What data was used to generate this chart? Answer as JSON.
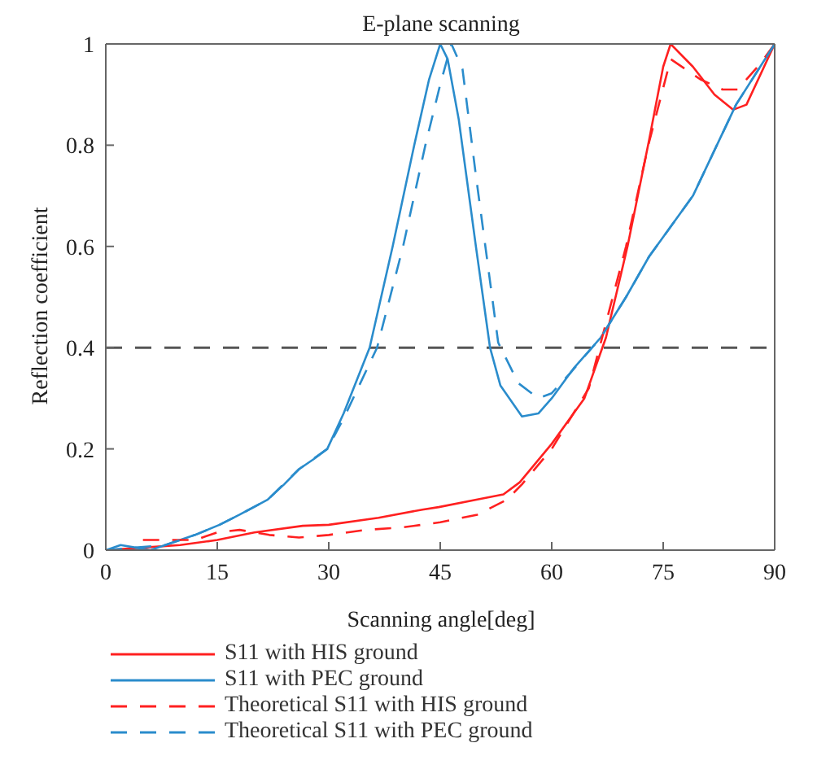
{
  "chart_data": {
    "type": "line",
    "title": "E-plane scanning",
    "xlabel": "Scanning angle[deg]",
    "ylabel": "Reflection coefficient",
    "xlim": [
      0,
      90
    ],
    "xticks": [
      0,
      15,
      30,
      45,
      60,
      75,
      90
    ],
    "ylim": [
      0,
      1
    ],
    "yticks": [
      0,
      0.2,
      0.4,
      0.6,
      0.8,
      1
    ],
    "grid": false,
    "legend": "bottom",
    "marker": "none",
    "ref_lines": [
      {
        "axis": "y",
        "value": 0.4,
        "color": "#555555",
        "line_style": "dashed"
      }
    ],
    "series": [
      {
        "name": "S11 with HIS ground",
        "color": "#ff2020",
        "line_style": "solid",
        "x": [
          0,
          5,
          10,
          15,
          20,
          26.5,
          30,
          36.7,
          42.6,
          44.8,
          50,
          53.5,
          55.7,
          60,
          64.4,
          67.3,
          70.2,
          73.1,
          75,
          76,
          79,
          81.9,
          84.4,
          86.2,
          90
        ],
        "values": [
          0,
          0.005,
          0.01,
          0.02,
          0.035,
          0.048,
          0.05,
          0.064,
          0.08,
          0.085,
          0.1,
          0.11,
          0.134,
          0.21,
          0.3,
          0.42,
          0.6,
          0.81,
          0.955,
          1,
          0.955,
          0.9,
          0.87,
          0.88,
          1
        ]
      },
      {
        "name": "S11 with PEC ground",
        "color": "#2a8ccc",
        "line_style": "solid",
        "x": [
          0,
          2,
          4,
          6,
          8,
          10,
          12,
          15.3,
          18,
          21.8,
          24,
          26,
          28,
          29.8,
          32,
          35.5,
          38.6,
          41.5,
          43.5,
          45,
          46,
          47.5,
          49.8,
          51.7,
          53.1,
          56,
          58.2,
          60,
          63,
          66.6,
          70,
          73.1,
          79,
          84.8,
          90
        ],
        "values": [
          0,
          0.01,
          0.005,
          0,
          0.01,
          0.02,
          0.03,
          0.05,
          0.07,
          0.1,
          0.13,
          0.16,
          0.18,
          0.2,
          0.27,
          0.4,
          0.6,
          0.8,
          0.93,
          1,
          0.97,
          0.85,
          0.6,
          0.4,
          0.325,
          0.264,
          0.27,
          0.3,
          0.36,
          0.42,
          0.5,
          0.58,
          0.7,
          0.88,
          1
        ]
      },
      {
        "name": "Theoretical S11 with HIS ground",
        "color": "#ff2020",
        "line_style": "dashed",
        "x": [
          5,
          12,
          15,
          18,
          22,
          26,
          30,
          35,
          40,
          45,
          50,
          54,
          56,
          60,
          65,
          70,
          73,
          76,
          78,
          80,
          83,
          85,
          88,
          90
        ],
        "values": [
          0.02,
          0.02,
          0.035,
          0.04,
          0.03,
          0.025,
          0.03,
          0.04,
          0.045,
          0.055,
          0.07,
          0.1,
          0.13,
          0.2,
          0.32,
          0.6,
          0.8,
          0.97,
          0.95,
          0.93,
          0.91,
          0.91,
          0.96,
          1
        ]
      },
      {
        "name": "Theoretical S11 with PEC ground",
        "color": "#2a8ccc",
        "line_style": "dashed",
        "x": [
          0,
          4,
          8,
          12,
          15.3,
          18,
          21.8,
          26,
          29.8,
          32,
          36.5,
          40,
          43,
          45,
          46.5,
          48,
          49.8,
          52.8,
          55.5,
          58.2,
          60,
          62.5,
          66.6,
          70,
          73.1,
          79,
          84.8,
          90
        ],
        "values": [
          0,
          0.005,
          0.01,
          0.03,
          0.05,
          0.07,
          0.1,
          0.16,
          0.2,
          0.26,
          0.4,
          0.6,
          0.8,
          0.92,
          1,
          0.95,
          0.74,
          0.41,
          0.33,
          0.3,
          0.31,
          0.35,
          0.42,
          0.5,
          0.58,
          0.7,
          0.88,
          1
        ]
      }
    ]
  }
}
